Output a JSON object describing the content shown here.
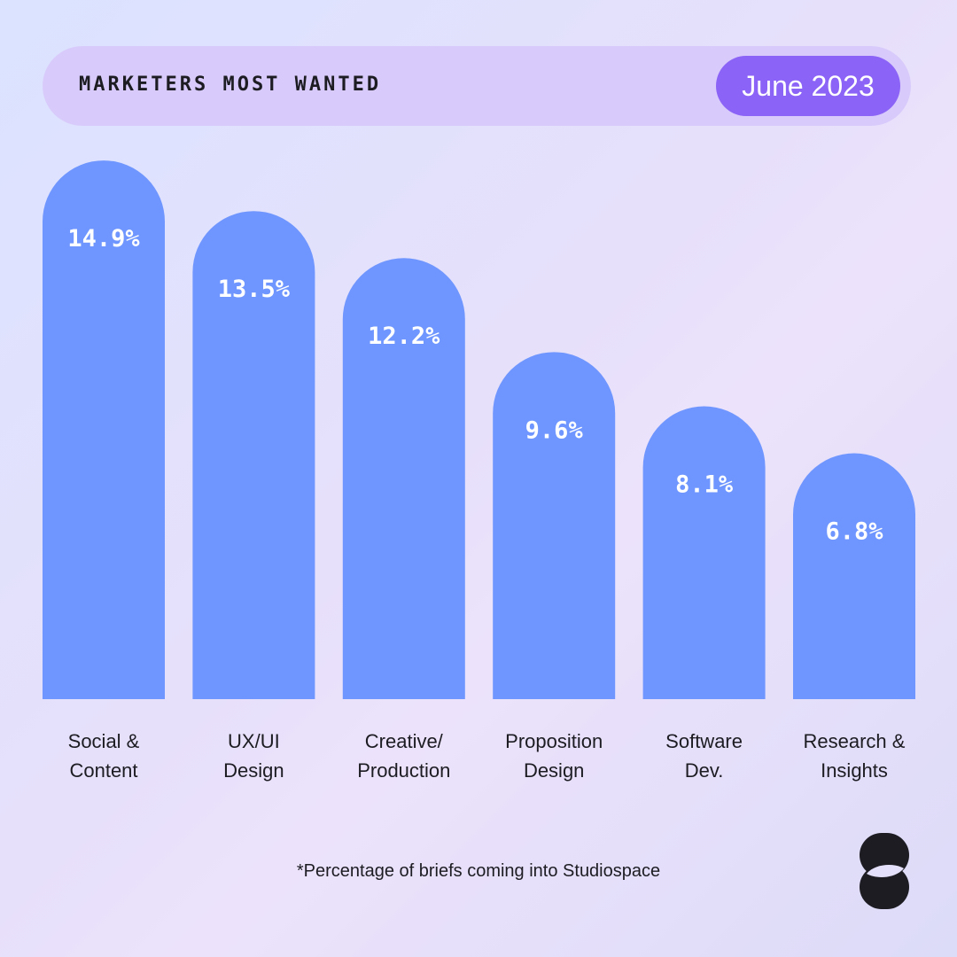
{
  "header": {
    "title": "MARKETERS MOST WANTED",
    "date": "June 2023"
  },
  "chart_data": {
    "type": "bar",
    "title": "MARKETERS MOST WANTED",
    "categories": [
      "Social & Content",
      "UX/UI Design",
      "Creative/ Production",
      "Proposition Design",
      "Software Dev.",
      "Research & Insights"
    ],
    "category_lines": [
      [
        "Social &",
        "Content"
      ],
      [
        "UX/UI",
        "Design"
      ],
      [
        "Creative/",
        "Production"
      ],
      [
        "Proposition",
        "Design"
      ],
      [
        "Software",
        "Dev."
      ],
      [
        "Research &",
        "Insights"
      ]
    ],
    "values": [
      14.9,
      13.5,
      12.2,
      9.6,
      8.1,
      6.8
    ],
    "value_labels": [
      "14.9%",
      "13.5%",
      "12.2%",
      "9.6%",
      "8.1%",
      "6.8%"
    ],
    "unit": "%",
    "bar_color": "#6f96fe",
    "grid": false
  },
  "footnote": "*Percentage of briefs coming into Studiospace",
  "colors": {
    "accent": "#8b63f6",
    "header_bg": "#d8cbfb",
    "text": "#1c1c22"
  },
  "logo": {
    "icon": "studiospace-logo-icon"
  }
}
